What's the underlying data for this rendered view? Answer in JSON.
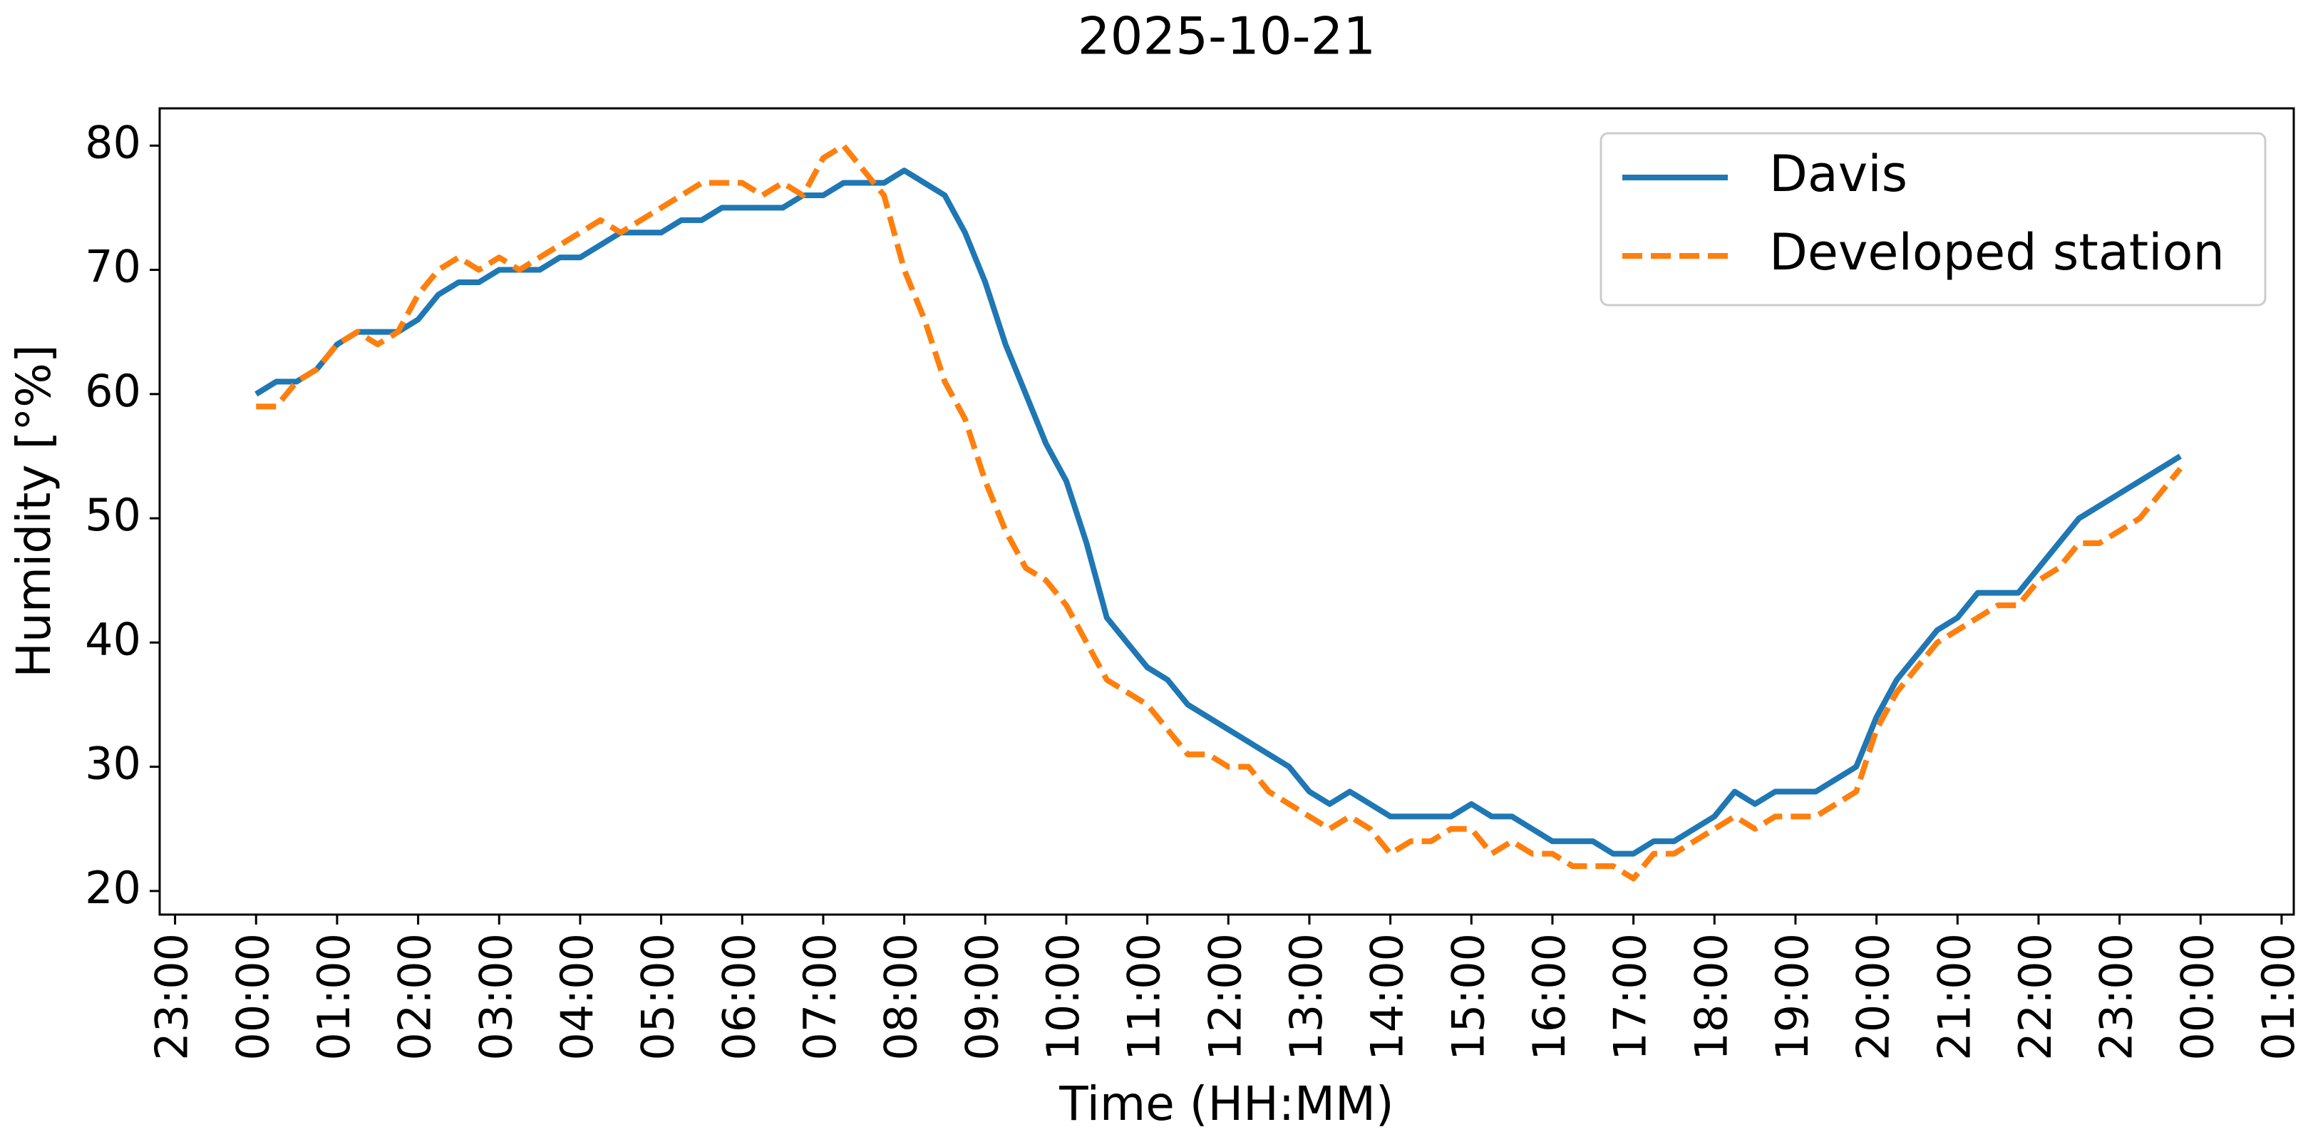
{
  "chart_data": {
    "type": "line",
    "title": "2025-10-21",
    "xlabel": "Time (HH:MM)",
    "ylabel": "Humidity [°%]",
    "x": [
      0,
      0.25,
      0.5,
      0.75,
      1,
      1.25,
      1.5,
      1.75,
      2,
      2.25,
      2.5,
      2.75,
      3,
      3.25,
      3.5,
      3.75,
      4,
      4.25,
      4.5,
      4.75,
      5,
      5.25,
      5.5,
      5.75,
      6,
      6.25,
      6.5,
      6.75,
      7,
      7.25,
      7.5,
      7.75,
      8,
      8.25,
      8.5,
      8.75,
      9,
      9.25,
      9.5,
      9.75,
      10,
      10.25,
      10.5,
      10.75,
      11,
      11.25,
      11.5,
      11.75,
      12,
      12.25,
      12.5,
      12.75,
      13,
      13.25,
      13.5,
      13.75,
      14,
      14.25,
      14.5,
      14.75,
      15,
      15.25,
      15.5,
      15.75,
      16,
      16.25,
      16.5,
      16.75,
      17,
      17.25,
      17.5,
      17.75,
      18,
      18.25,
      18.5,
      18.75,
      19,
      19.25,
      19.5,
      19.75,
      20,
      20.25,
      20.5,
      20.75,
      21,
      21.25,
      21.5,
      21.75,
      22,
      22.25,
      22.5,
      22.75,
      23,
      23.25,
      23.5,
      23.75
    ],
    "series": [
      {
        "name": "Davis",
        "color": "#1f77b4",
        "dash": false,
        "values": [
          60,
          61,
          61,
          62,
          64,
          65,
          65,
          65,
          66,
          68,
          69,
          69,
          70,
          70,
          70,
          71,
          71,
          72,
          73,
          73,
          73,
          74,
          74,
          75,
          75,
          75,
          75,
          76,
          76,
          77,
          77,
          77,
          78,
          77,
          76,
          73,
          69,
          64,
          60,
          56,
          53,
          48,
          42,
          40,
          38,
          37,
          35,
          34,
          33,
          32,
          31,
          30,
          28,
          27,
          28,
          27,
          26,
          26,
          26,
          26,
          27,
          26,
          26,
          25,
          24,
          24,
          24,
          23,
          23,
          24,
          24,
          25,
          26,
          28,
          27,
          28,
          28,
          28,
          29,
          30,
          34,
          37,
          39,
          41,
          42,
          44,
          44,
          44,
          46,
          48,
          50,
          51,
          52,
          53,
          54,
          55
        ]
      },
      {
        "name": "Developed station",
        "color": "#ff7f0e",
        "dash": true,
        "values": [
          59,
          59,
          61,
          62,
          64,
          65,
          64,
          65,
          68,
          70,
          71,
          70,
          71,
          70,
          71,
          72,
          73,
          74,
          73,
          74,
          75,
          76,
          77,
          77,
          77,
          76,
          77,
          76,
          79,
          80,
          78,
          76,
          70,
          66,
          61,
          58,
          53,
          49,
          46,
          45,
          43,
          40,
          37,
          36,
          35,
          33,
          31,
          31,
          30,
          30,
          28,
          27,
          26,
          25,
          26,
          25,
          23,
          24,
          24,
          25,
          25,
          23,
          24,
          23,
          23,
          22,
          22,
          22,
          21,
          23,
          23,
          24,
          25,
          26,
          25,
          26,
          26,
          26,
          27,
          28,
          33,
          36,
          38,
          40,
          41,
          42,
          43,
          43,
          45,
          46,
          48,
          48,
          49,
          50,
          52,
          54
        ]
      }
    ],
    "xlim": [
      -1.19,
      25.15
    ],
    "xticks": [
      {
        "value": -1,
        "label": "23:00"
      },
      {
        "value": 0,
        "label": "00:00"
      },
      {
        "value": 1,
        "label": "01:00"
      },
      {
        "value": 2,
        "label": "02:00"
      },
      {
        "value": 3,
        "label": "03:00"
      },
      {
        "value": 4,
        "label": "04:00"
      },
      {
        "value": 5,
        "label": "05:00"
      },
      {
        "value": 6,
        "label": "06:00"
      },
      {
        "value": 7,
        "label": "07:00"
      },
      {
        "value": 8,
        "label": "08:00"
      },
      {
        "value": 9,
        "label": "09:00"
      },
      {
        "value": 10,
        "label": "10:00"
      },
      {
        "value": 11,
        "label": "11:00"
      },
      {
        "value": 12,
        "label": "12:00"
      },
      {
        "value": 13,
        "label": "13:00"
      },
      {
        "value": 14,
        "label": "14:00"
      },
      {
        "value": 15,
        "label": "15:00"
      },
      {
        "value": 16,
        "label": "16:00"
      },
      {
        "value": 17,
        "label": "17:00"
      },
      {
        "value": 18,
        "label": "18:00"
      },
      {
        "value": 19,
        "label": "19:00"
      },
      {
        "value": 20,
        "label": "20:00"
      },
      {
        "value": 21,
        "label": "21:00"
      },
      {
        "value": 22,
        "label": "22:00"
      },
      {
        "value": 23,
        "label": "23:00"
      },
      {
        "value": 24,
        "label": "00:00"
      },
      {
        "value": 25,
        "label": "01:00"
      }
    ],
    "ylim": [
      18.1,
      83
    ],
    "yticks": [
      20,
      30,
      40,
      50,
      60,
      70,
      80
    ],
    "grid": false,
    "legend": "upper right"
  }
}
